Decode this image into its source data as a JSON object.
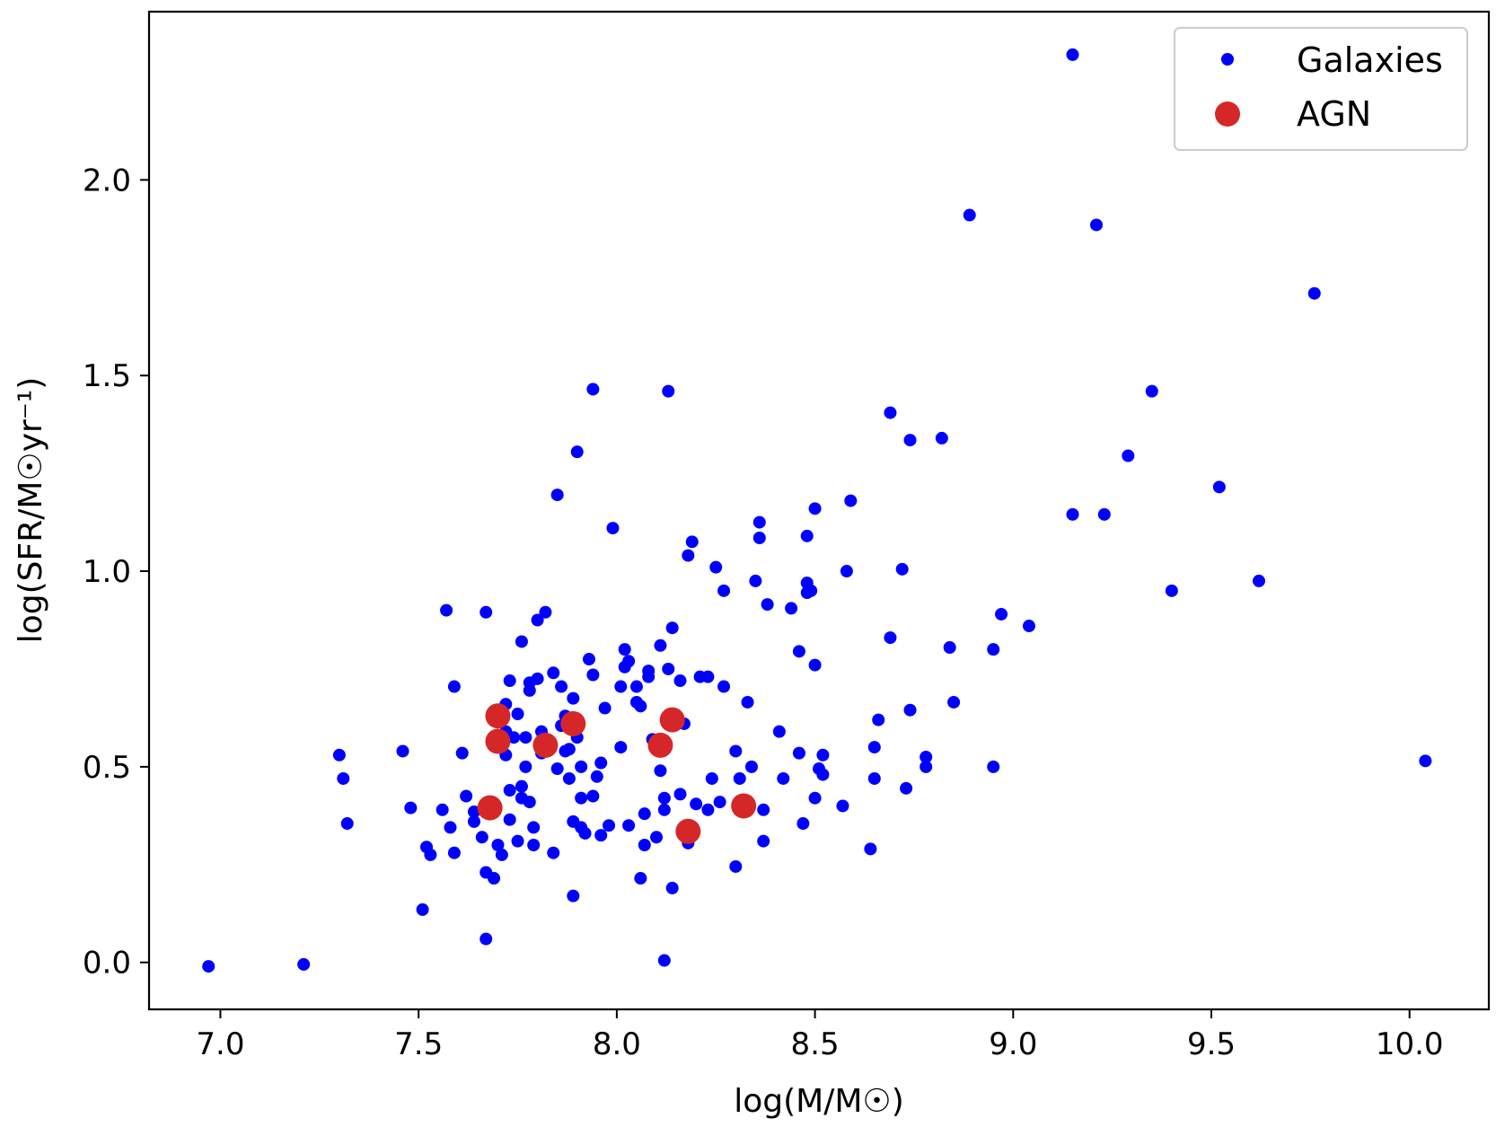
{
  "chart_data": {
    "type": "scatter",
    "xlabel": "log(M/M☉)",
    "ylabel": "log(SFR/M☉yr⁻¹)",
    "xlim": [
      6.82,
      10.2
    ],
    "ylim": [
      -0.12,
      2.43
    ],
    "x_ticks": [
      7.0,
      7.5,
      8.0,
      8.5,
      9.0,
      9.5,
      10.0
    ],
    "x_tick_labels": [
      "7.0",
      "7.5",
      "8.0",
      "8.5",
      "9.0",
      "9.5",
      "10.0"
    ],
    "y_ticks": [
      0.0,
      0.5,
      1.0,
      1.5,
      2.0
    ],
    "y_tick_labels": [
      "0.0",
      "0.5",
      "1.0",
      "1.5",
      "2.0"
    ],
    "grid": false,
    "legend_position": "top-right",
    "series": [
      {
        "name": "Galaxies",
        "color": "#0000ff",
        "marker_size": "small",
        "points": [
          [
            6.97,
            -0.01
          ],
          [
            7.21,
            -0.005
          ],
          [
            7.3,
            0.53
          ],
          [
            7.31,
            0.47
          ],
          [
            7.32,
            0.355
          ],
          [
            7.46,
            0.54
          ],
          [
            7.48,
            0.395
          ],
          [
            7.51,
            0.135
          ],
          [
            7.52,
            0.295
          ],
          [
            7.53,
            0.275
          ],
          [
            7.56,
            0.39
          ],
          [
            7.57,
            0.9
          ],
          [
            7.58,
            0.345
          ],
          [
            7.59,
            0.705
          ],
          [
            7.59,
            0.28
          ],
          [
            7.61,
            0.535
          ],
          [
            7.62,
            0.425
          ],
          [
            7.64,
            0.36
          ],
          [
            7.64,
            0.385
          ],
          [
            7.66,
            0.32
          ],
          [
            7.67,
            0.895
          ],
          [
            7.67,
            0.23
          ],
          [
            7.67,
            0.06
          ],
          [
            7.69,
            0.215
          ],
          [
            7.7,
            0.3
          ],
          [
            7.71,
            0.275
          ],
          [
            7.72,
            0.66
          ],
          [
            7.72,
            0.59
          ],
          [
            7.72,
            0.53
          ],
          [
            7.73,
            0.72
          ],
          [
            7.73,
            0.44
          ],
          [
            7.73,
            0.365
          ],
          [
            7.74,
            0.575
          ],
          [
            7.75,
            0.31
          ],
          [
            7.75,
            0.635
          ],
          [
            7.76,
            0.82
          ],
          [
            7.76,
            0.45
          ],
          [
            7.76,
            0.42
          ],
          [
            7.77,
            0.575
          ],
          [
            7.77,
            0.5
          ],
          [
            7.78,
            0.715
          ],
          [
            7.78,
            0.695
          ],
          [
            7.78,
            0.41
          ],
          [
            7.79,
            0.3
          ],
          [
            7.79,
            0.345
          ],
          [
            7.8,
            0.875
          ],
          [
            7.8,
            0.725
          ],
          [
            7.81,
            0.59
          ],
          [
            7.81,
            0.535
          ],
          [
            7.82,
            0.895
          ],
          [
            7.83,
            0.56
          ],
          [
            7.84,
            0.74
          ],
          [
            7.84,
            0.28
          ],
          [
            7.85,
            1.195
          ],
          [
            7.85,
            0.495
          ],
          [
            7.86,
            0.705
          ],
          [
            7.86,
            0.605
          ],
          [
            7.87,
            0.63
          ],
          [
            7.87,
            0.54
          ],
          [
            7.88,
            0.545
          ],
          [
            7.88,
            0.47
          ],
          [
            7.89,
            0.675
          ],
          [
            7.89,
            0.36
          ],
          [
            7.89,
            0.17
          ],
          [
            7.9,
            1.305
          ],
          [
            7.9,
            0.575
          ],
          [
            7.91,
            0.345
          ],
          [
            7.91,
            0.42
          ],
          [
            7.91,
            0.5
          ],
          [
            7.92,
            0.33
          ],
          [
            7.93,
            0.775
          ],
          [
            7.94,
            0.735
          ],
          [
            7.94,
            0.425
          ],
          [
            7.94,
            1.465
          ],
          [
            7.95,
            0.475
          ],
          [
            7.96,
            0.51
          ],
          [
            7.96,
            0.325
          ],
          [
            7.97,
            0.65
          ],
          [
            7.98,
            0.35
          ],
          [
            7.99,
            1.11
          ],
          [
            8.01,
            0.705
          ],
          [
            8.01,
            0.55
          ],
          [
            8.02,
            0.8
          ],
          [
            8.02,
            0.755
          ],
          [
            8.03,
            0.77
          ],
          [
            8.03,
            0.35
          ],
          [
            8.05,
            0.705
          ],
          [
            8.05,
            0.665
          ],
          [
            8.06,
            0.655
          ],
          [
            8.06,
            0.215
          ],
          [
            8.07,
            0.38
          ],
          [
            8.07,
            0.3
          ],
          [
            8.08,
            0.73
          ],
          [
            8.08,
            0.745
          ],
          [
            8.09,
            0.57
          ],
          [
            8.1,
            0.32
          ],
          [
            8.11,
            0.49
          ],
          [
            8.11,
            0.81
          ],
          [
            8.12,
            0.39
          ],
          [
            8.12,
            0.42
          ],
          [
            8.12,
            0.005
          ],
          [
            8.13,
            0.75
          ],
          [
            8.13,
            1.46
          ],
          [
            8.14,
            0.855
          ],
          [
            8.14,
            0.19
          ],
          [
            8.16,
            0.72
          ],
          [
            8.16,
            0.43
          ],
          [
            8.17,
            0.61
          ],
          [
            8.18,
            1.04
          ],
          [
            8.18,
            0.305
          ],
          [
            8.19,
            1.075
          ],
          [
            8.2,
            0.405
          ],
          [
            8.21,
            0.73
          ],
          [
            8.23,
            0.73
          ],
          [
            8.23,
            0.39
          ],
          [
            8.24,
            0.47
          ],
          [
            8.25,
            1.01
          ],
          [
            8.26,
            0.41
          ],
          [
            8.27,
            0.705
          ],
          [
            8.27,
            0.95
          ],
          [
            8.3,
            0.54
          ],
          [
            8.3,
            0.245
          ],
          [
            8.31,
            0.47
          ],
          [
            8.33,
            0.665
          ],
          [
            8.34,
            0.5
          ],
          [
            8.35,
            0.975
          ],
          [
            8.36,
            1.125
          ],
          [
            8.36,
            1.085
          ],
          [
            8.37,
            0.39
          ],
          [
            8.37,
            0.31
          ],
          [
            8.38,
            0.915
          ],
          [
            8.41,
            0.59
          ],
          [
            8.42,
            0.47
          ],
          [
            8.44,
            0.905
          ],
          [
            8.46,
            0.535
          ],
          [
            8.46,
            0.795
          ],
          [
            8.47,
            0.355
          ],
          [
            8.48,
            1.09
          ],
          [
            8.48,
            0.97
          ],
          [
            8.48,
            0.945
          ],
          [
            8.49,
            0.95
          ],
          [
            8.5,
            0.42
          ],
          [
            8.5,
            0.76
          ],
          [
            8.5,
            1.16
          ],
          [
            8.51,
            0.495
          ],
          [
            8.52,
            0.53
          ],
          [
            8.52,
            0.48
          ],
          [
            8.57,
            0.4
          ],
          [
            8.58,
            1.0
          ],
          [
            8.59,
            1.18
          ],
          [
            8.64,
            0.29
          ],
          [
            8.65,
            0.47
          ],
          [
            8.65,
            0.55
          ],
          [
            8.66,
            0.62
          ],
          [
            8.69,
            1.405
          ],
          [
            8.69,
            0.83
          ],
          [
            8.72,
            1.005
          ],
          [
            8.73,
            0.445
          ],
          [
            8.74,
            0.645
          ],
          [
            8.74,
            1.335
          ],
          [
            8.78,
            0.5
          ],
          [
            8.78,
            0.525
          ],
          [
            8.82,
            1.34
          ],
          [
            8.84,
            0.805
          ],
          [
            8.85,
            0.665
          ],
          [
            8.89,
            1.91
          ],
          [
            8.95,
            0.8
          ],
          [
            8.95,
            0.5
          ],
          [
            8.97,
            0.89
          ],
          [
            9.04,
            0.86
          ],
          [
            9.15,
            2.32
          ],
          [
            9.15,
            1.145
          ],
          [
            9.21,
            1.885
          ],
          [
            9.23,
            1.145
          ],
          [
            9.29,
            1.295
          ],
          [
            9.35,
            1.46
          ],
          [
            9.4,
            0.95
          ],
          [
            9.52,
            1.215
          ],
          [
            9.62,
            0.975
          ],
          [
            9.76,
            1.71
          ],
          [
            10.04,
            0.515
          ]
        ]
      },
      {
        "name": "AGN",
        "color": "#d62728",
        "marker_size": "large",
        "points": [
          [
            7.7,
            0.63
          ],
          [
            7.7,
            0.565
          ],
          [
            7.68,
            0.395
          ],
          [
            7.82,
            0.555
          ],
          [
            7.89,
            0.61
          ],
          [
            8.14,
            0.62
          ],
          [
            8.11,
            0.555
          ],
          [
            8.18,
            0.335
          ],
          [
            8.32,
            0.4
          ]
        ]
      }
    ]
  }
}
